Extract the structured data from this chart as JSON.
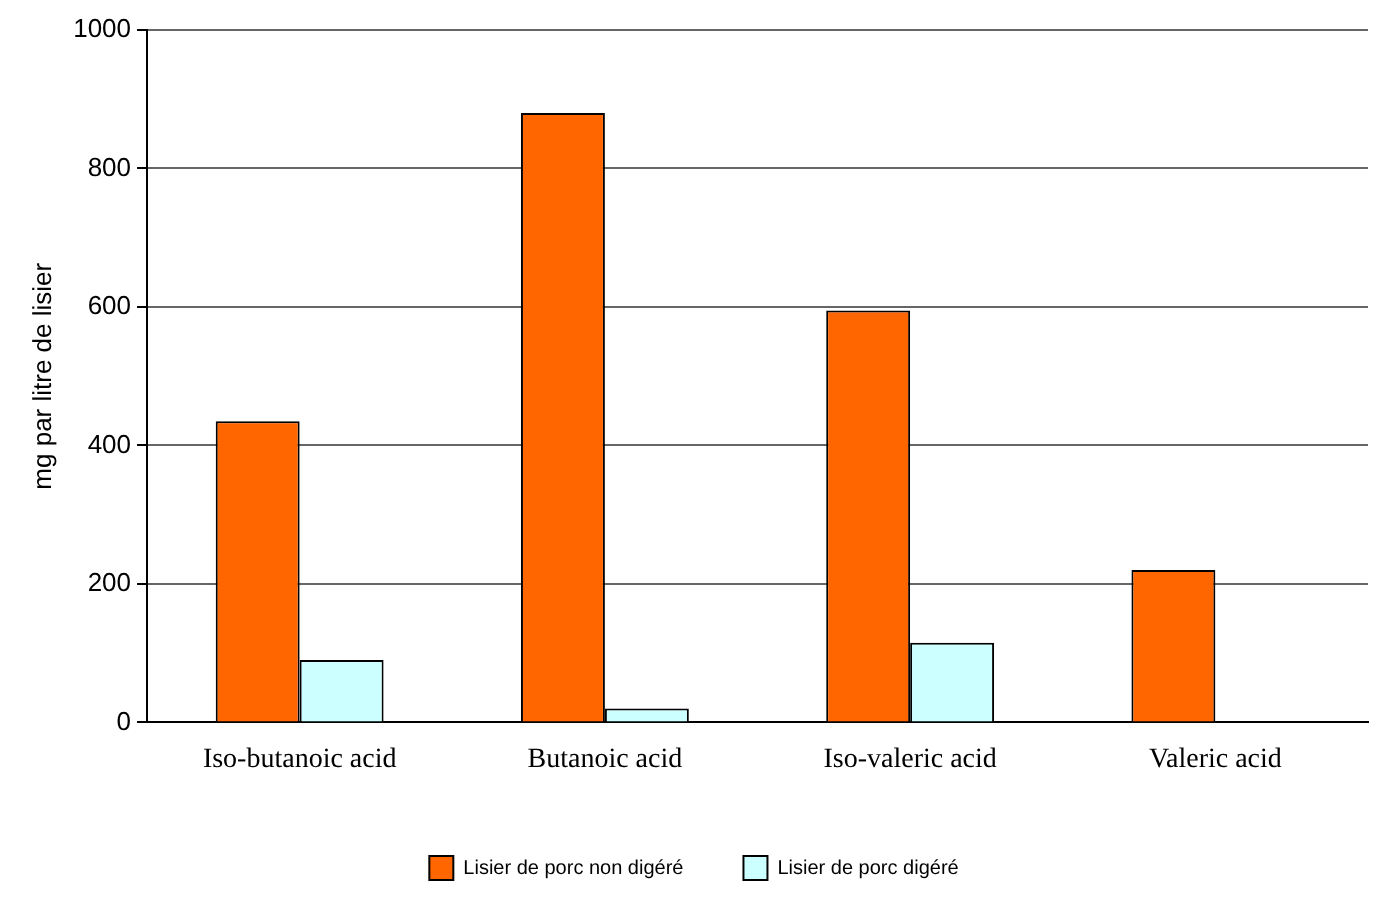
{
  "chart_data": {
    "type": "bar",
    "ylabel": "mg par litre de lisier",
    "categories": [
      "Iso-butanoic acid",
      "Butanoic acid",
      "Iso-valeric acid",
      "Valeric acid"
    ],
    "series": [
      {
        "name": "Lisier de porc non digéré",
        "color": "#ff6600",
        "values": [
          435,
          880,
          595,
          220
        ]
      },
      {
        "name": "Lisier de porc digéré",
        "color": "#ccffff",
        "values": [
          90,
          20,
          115,
          0
        ]
      }
    ],
    "ylim": [
      0,
      1000
    ],
    "yticks": [
      0,
      200,
      400,
      600,
      800,
      1000
    ],
    "grid": "y",
    "legend": "bottom"
  }
}
